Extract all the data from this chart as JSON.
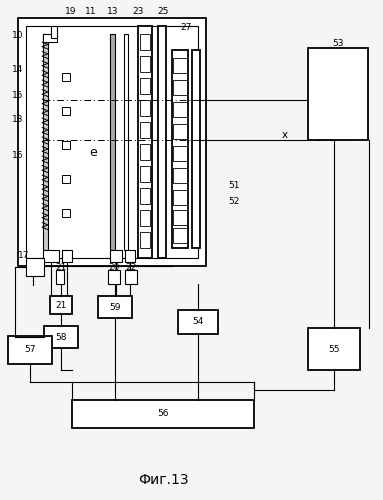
{
  "title": "Фиг.13",
  "bg_color": "#f5f5f5",
  "fig_width": 3.83,
  "fig_height": 5.0,
  "dpi": 100
}
